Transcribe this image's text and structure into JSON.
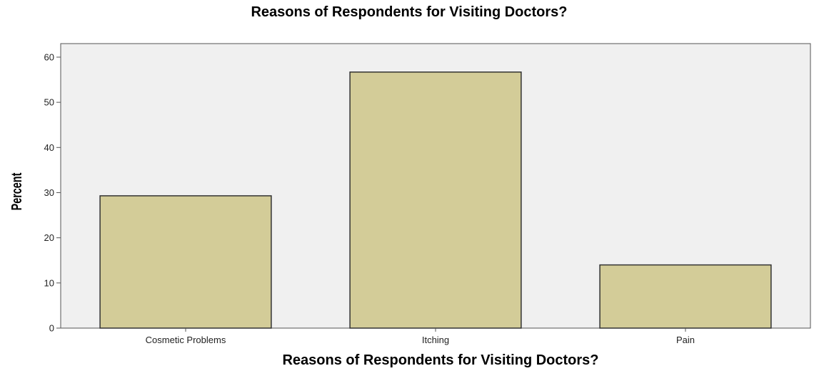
{
  "chart_data": {
    "type": "bar",
    "title": "Reasons of Respondents for Visiting Doctors?",
    "xlabel": "Reasons of Respondents for Visiting Doctors?",
    "ylabel": "Percent",
    "categories": [
      "Cosmetic Problems",
      "Itching",
      "Pain"
    ],
    "values": [
      29.3,
      56.7,
      14.0
    ],
    "ylim": [
      0,
      63
    ],
    "yticks": [
      "0",
      "10",
      "20",
      "30",
      "40",
      "50",
      "60"
    ],
    "grid": false,
    "legend": "none",
    "colors": {
      "bar_fill": "#d3cc98",
      "bar_stroke": "#333333",
      "plot_background": "#f0f0f0",
      "axis": "#555555"
    }
  }
}
